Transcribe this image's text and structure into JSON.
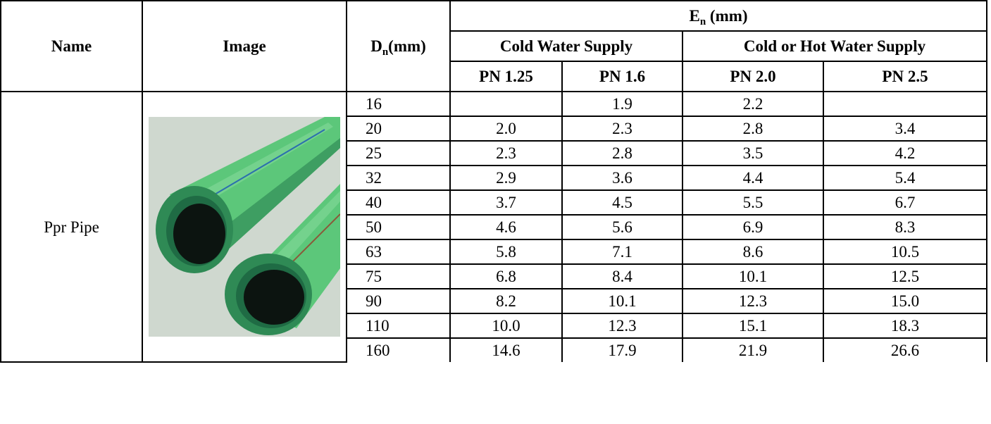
{
  "headers": {
    "name": "Name",
    "image": "Image",
    "dn_main": "D",
    "dn_sub": "n",
    "dn_unit": "(mm)",
    "en_main": "E",
    "en_sub": "n",
    "en_unit": " (mm)",
    "cold": "Cold Water Supply",
    "cold_hot": "Cold or Hot Water Supply",
    "pn": [
      "PN 1.25",
      "PN 1.6",
      "PN 2.0",
      "PN 2.5"
    ]
  },
  "product": {
    "name": "Ppr Pipe",
    "image_icon": "green-ppr-pipes-icon",
    "colors": {
      "pipe_green": "#5cc77a",
      "pipe_dark": "#2f8a55",
      "inner": "#0c1410",
      "bg": "#cfd8cf"
    }
  },
  "rows": [
    {
      "dn": "16",
      "v": [
        "",
        "1.9",
        "2.2",
        ""
      ]
    },
    {
      "dn": "20",
      "v": [
        "2.0",
        "2.3",
        "2.8",
        "3.4"
      ]
    },
    {
      "dn": "25",
      "v": [
        "2.3",
        "2.8",
        "3.5",
        "4.2"
      ]
    },
    {
      "dn": "32",
      "v": [
        "2.9",
        "3.6",
        "4.4",
        "5.4"
      ]
    },
    {
      "dn": "40",
      "v": [
        "3.7",
        "4.5",
        "5.5",
        "6.7"
      ]
    },
    {
      "dn": "50",
      "v": [
        "4.6",
        "5.6",
        "6.9",
        "8.3"
      ]
    },
    {
      "dn": "63",
      "v": [
        "5.8",
        "7.1",
        "8.6",
        "10.5"
      ]
    },
    {
      "dn": "75",
      "v": [
        "6.8",
        "8.4",
        "10.1",
        "12.5"
      ]
    },
    {
      "dn": "90",
      "v": [
        "8.2",
        "10.1",
        "12.3",
        "15.0"
      ]
    },
    {
      "dn": "110",
      "v": [
        "10.0",
        "12.3",
        "15.1",
        "18.3"
      ]
    },
    {
      "dn": "160",
      "v": [
        "14.6",
        "17.9",
        "21.9",
        "26.6"
      ]
    }
  ]
}
